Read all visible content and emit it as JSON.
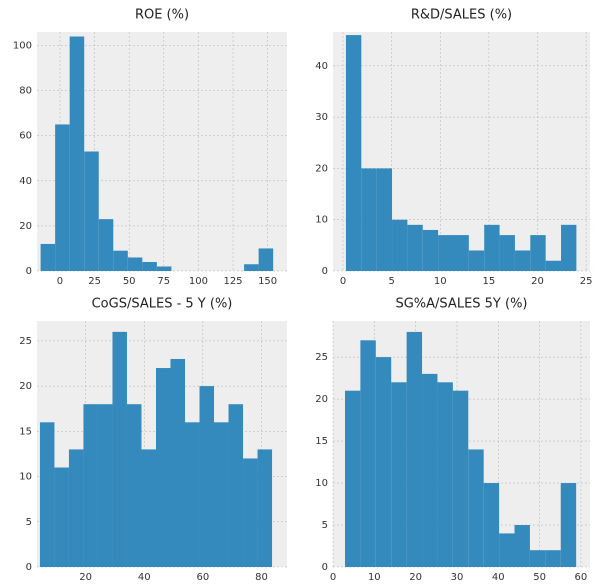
{
  "chart_data": [
    {
      "type": "histogram",
      "title": "ROE (%)",
      "color": "#348abd",
      "grid": true,
      "bins": [
        -14,
        -3.5,
        7,
        17.5,
        28,
        38.5,
        49,
        59.5,
        70,
        80.5,
        91,
        101.5,
        112,
        122.5,
        133,
        143.5,
        154
      ],
      "values": [
        12,
        65,
        104,
        53,
        23,
        9,
        6,
        4,
        2,
        0,
        0,
        0,
        0,
        0,
        3,
        10
      ],
      "xlim": [
        -16.6,
        164
      ],
      "xticks": [
        0,
        25,
        50,
        75,
        100,
        125,
        150
      ],
      "ylim": [
        0,
        106
      ],
      "yticks": [
        0,
        20,
        40,
        60,
        80,
        100
      ]
    },
    {
      "type": "histogram",
      "title": "R&D/SALES (%)",
      "color": "#348abd",
      "grid": true,
      "bins": [
        0.3,
        1.88,
        3.46,
        5.04,
        6.62,
        8.2,
        9.78,
        11.36,
        12.94,
        14.52,
        16.1,
        17.68,
        19.26,
        20.84,
        22.42,
        24
      ],
      "values": [
        46,
        20,
        20,
        10,
        9,
        8,
        7,
        7,
        4,
        9,
        7,
        4,
        7,
        2,
        9
      ],
      "xlim": [
        -1.03,
        25.4
      ],
      "xticks": [
        0,
        5,
        10,
        15,
        20,
        25
      ],
      "ylim": [
        0,
        46.6
      ],
      "yticks": [
        0,
        10,
        20,
        30,
        40
      ]
    },
    {
      "type": "histogram",
      "title": "CoGS/SALES - 5 Y (%)",
      "color": "#348abd",
      "grid": true,
      "bins": [
        4.4,
        9.35,
        14.3,
        19.25,
        24.2,
        29.15,
        34.1,
        39.05,
        44,
        48.95,
        53.9,
        58.85,
        63.8,
        68.75,
        73.7,
        78.65,
        83.6
      ],
      "values": [
        16,
        11,
        13,
        18,
        18,
        26,
        18,
        13,
        22,
        23,
        16,
        20,
        16,
        18,
        12,
        13
      ],
      "xlim": [
        3.4,
        88.7
      ],
      "xticks": [
        20,
        40,
        60,
        80
      ],
      "ylim": [
        0,
        27.2
      ],
      "yticks": [
        0,
        5,
        10,
        15,
        20,
        25
      ]
    },
    {
      "type": "histogram",
      "title": "SG%A/SALES 5Y (%)",
      "color": "#348abd",
      "grid": true,
      "bins": [
        2.9,
        6.63,
        10.36,
        14.09,
        17.82,
        21.55,
        25.28,
        29.01,
        32.74,
        36.47,
        40.2,
        43.93,
        47.66,
        51.39,
        55.12,
        58.85
      ],
      "values": [
        21,
        27,
        25,
        22,
        28,
        23,
        22,
        21,
        14,
        10,
        4,
        5,
        2,
        2,
        10
      ],
      "xlim": [
        0,
        62.2
      ],
      "xticks": [
        0,
        10,
        20,
        30,
        40,
        50,
        60
      ],
      "ylim": [
        0,
        29.3
      ],
      "yticks": [
        0,
        5,
        10,
        15,
        20,
        25
      ]
    }
  ]
}
